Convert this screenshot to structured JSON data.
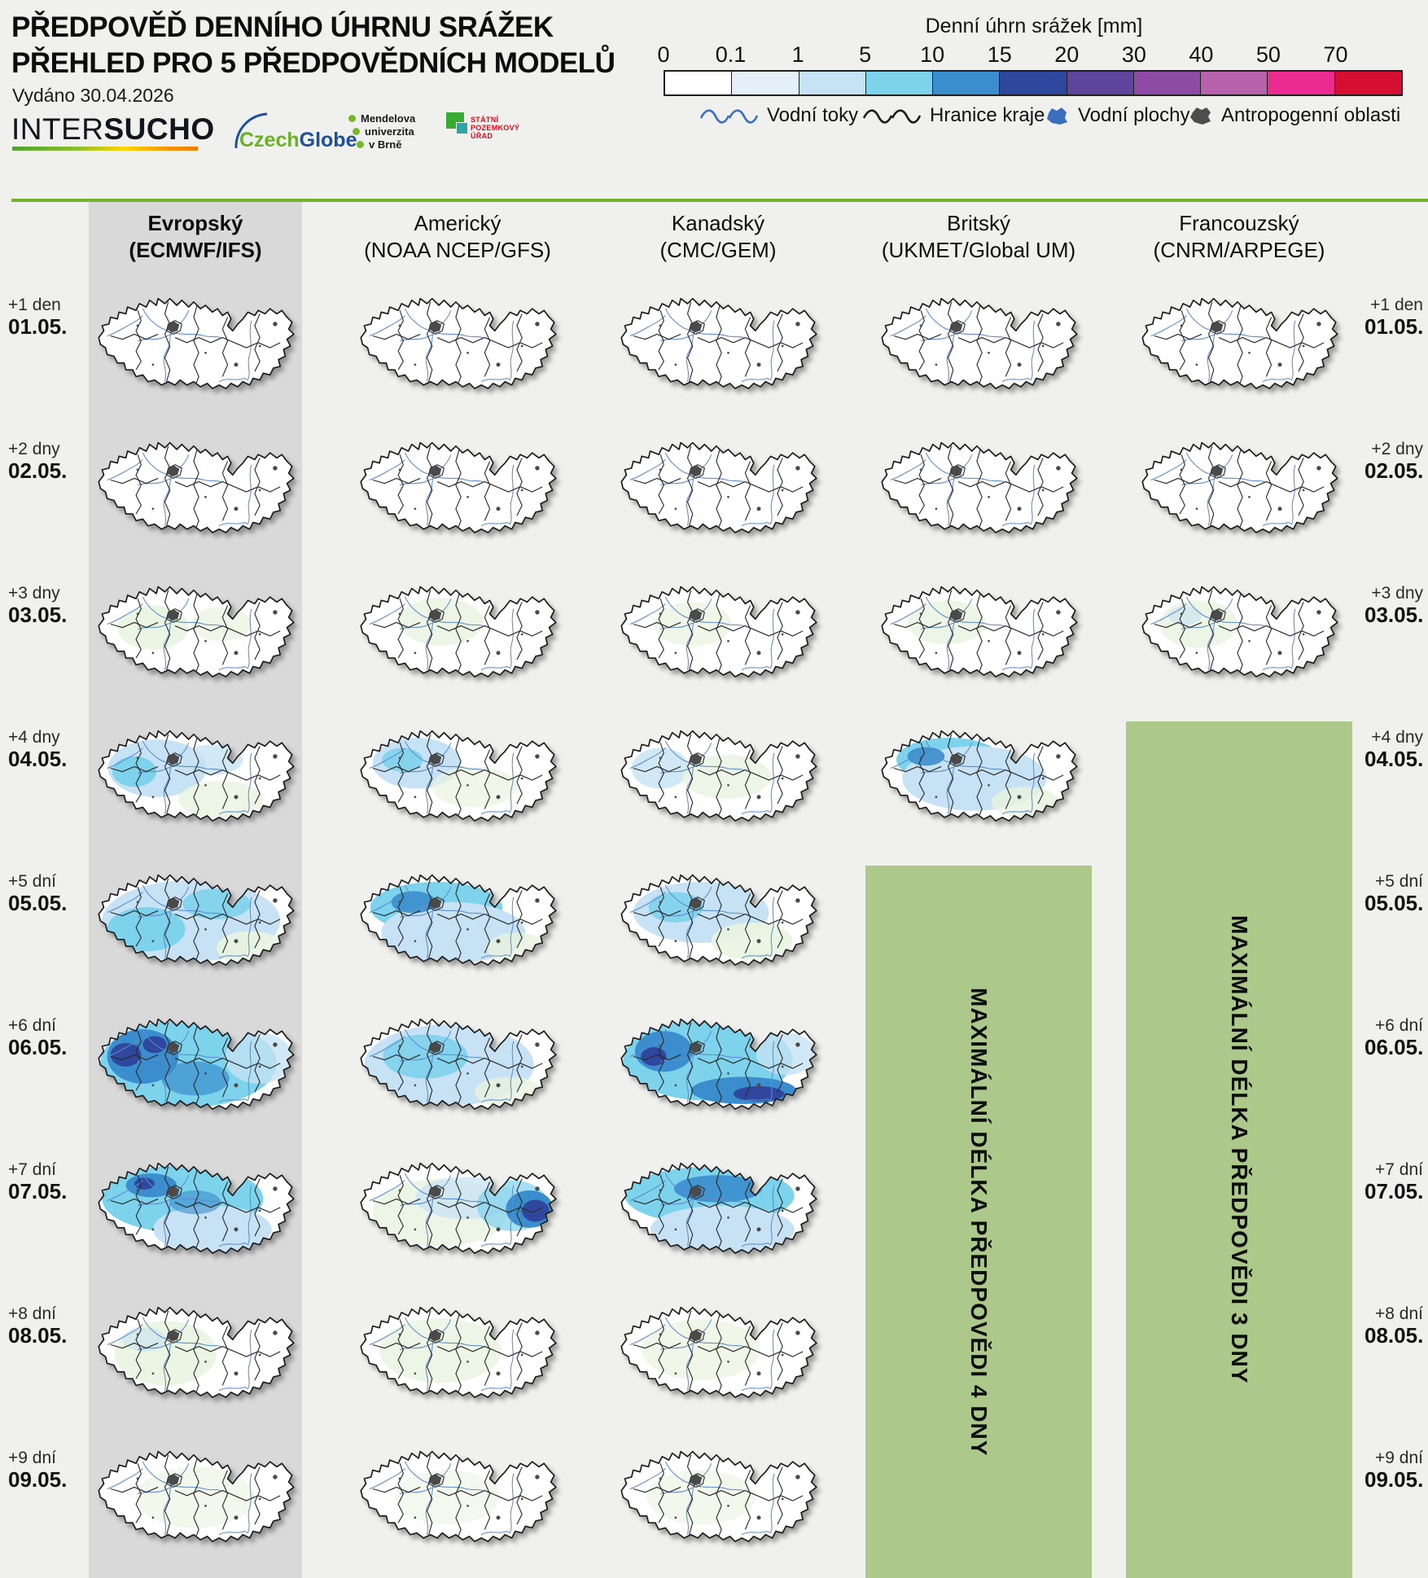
{
  "page": {
    "background": "#f0f0ee",
    "accent_green": "#72b32b",
    "box_green": "#adc88b",
    "band_gray": "#d9d9d9"
  },
  "header": {
    "title_line1": "PŘEDPOVĚĎ DENNÍHO ÚHRNU SRÁŽEK",
    "title_line2": "PŘEHLED PRO 5 PŘEDPOVĚDNÍCH MODELŮ",
    "issued": "Vydáno 30.04.2026"
  },
  "logos": {
    "intersucho_regular": "INTER",
    "intersucho_bold": "SUCHO",
    "czechglobe_green": "Czech",
    "czechglobe_blue": "Globe",
    "mendel_lines": [
      "Mendelova",
      "univerzita",
      "v Brně"
    ],
    "spu_lines": [
      "STÁTNÍ",
      "POZEMKOVÝ",
      "ÚŘAD"
    ]
  },
  "colorbar": {
    "title": "Denní úhrn srážek [mm]",
    "ticks": [
      "0",
      "0.1",
      "1",
      "5",
      "10",
      "15",
      "20",
      "30",
      "40",
      "50",
      "70"
    ],
    "colors": [
      "#ffffff",
      "#e4eff9",
      "#c6e2f4",
      "#7dd2ec",
      "#3a8ecd",
      "#2f479f",
      "#5f449e",
      "#8e4ba6",
      "#b763ab",
      "#eb2b90",
      "#d60f32"
    ]
  },
  "map_legend": {
    "items": [
      {
        "label": "Vodní toky"
      },
      {
        "label": "Hranice kraje"
      },
      {
        "label": "Vodní plochy"
      },
      {
        "label": "Antropogenní oblasti"
      }
    ]
  },
  "models": [
    {
      "name": "Evropský",
      "source": "(ECMWF/IFS)",
      "highlighted": true
    },
    {
      "name": "Americký",
      "source": "(NOAA NCEP/GFS)",
      "highlighted": false
    },
    {
      "name": "Kanadský",
      "source": "(CMC/GEM)",
      "highlighted": false
    },
    {
      "name": "Britský",
      "source": "(UKMET/Global UM)",
      "highlighted": false
    },
    {
      "name": "Francouzský",
      "source": "(CNRM/ARPEGE)",
      "highlighted": false
    }
  ],
  "rows": [
    {
      "offset": "+1 den",
      "date": "01.05."
    },
    {
      "offset": "+2 dny",
      "date": "02.05."
    },
    {
      "offset": "+3 dny",
      "date": "03.05."
    },
    {
      "offset": "+4 dny",
      "date": "04.05."
    },
    {
      "offset": "+5 dní",
      "date": "05.05."
    },
    {
      "offset": "+6 dní",
      "date": "06.05."
    },
    {
      "offset": "+7 dní",
      "date": "07.05."
    },
    {
      "offset": "+8 dní",
      "date": "08.05."
    },
    {
      "offset": "+9 dní",
      "date": "09.05."
    }
  ],
  "max_boxes": [
    {
      "label": "MAXIMÁLNÍ DÉLKA PŘEDPOVĚDI 4 DNY",
      "model": "Britský",
      "forecast_days": 4
    },
    {
      "label": "MAXIMÁLNÍ DÉLKA PŘEDPOVĚDI 3 DNY",
      "model": "Francouzský",
      "forecast_days": 3
    }
  ],
  "maps": {
    "cells": [
      {
        "model": 0,
        "row": 0,
        "wash": []
      },
      {
        "model": 0,
        "row": 1,
        "wash": []
      },
      {
        "model": 0,
        "row": 2,
        "wash": [
          [
            "#e9f4e0",
            70,
            62,
            42,
            26,
            0.9
          ],
          [
            "#e9f4e0",
            150,
            58,
            36,
            20,
            0.7
          ]
        ]
      },
      {
        "model": 0,
        "row": 3,
        "wash": [
          [
            "#c6e2f4",
            75,
            58,
            58,
            34,
            1
          ],
          [
            "#7dd2ec",
            48,
            62,
            26,
            18,
            1
          ],
          [
            "#c6e2f4",
            140,
            48,
            36,
            18,
            0.8
          ],
          [
            "#e9f4e0",
            150,
            95,
            50,
            22,
            0.8
          ]
        ]
      },
      {
        "model": 0,
        "row": 4,
        "wash": [
          [
            "#c6e2f4",
            115,
            68,
            105,
            48,
            1
          ],
          [
            "#7dd2ec",
            62,
            78,
            46,
            26,
            1
          ],
          [
            "#7dd2ec",
            145,
            48,
            40,
            18,
            0.9
          ],
          [
            "#e9f4e0",
            185,
            100,
            40,
            20,
            0.9
          ]
        ]
      },
      {
        "model": 0,
        "row": 5,
        "wash": [
          [
            "#7dd2ec",
            112,
            66,
            104,
            52,
            1
          ],
          [
            "#3a8ecd",
            58,
            58,
            42,
            32,
            1
          ],
          [
            "#2f479f",
            38,
            56,
            18,
            14,
            1
          ],
          [
            "#2f479f",
            72,
            44,
            14,
            10,
            1
          ],
          [
            "#3a8ecd",
            120,
            84,
            40,
            20,
            0.7
          ],
          [
            "#c6e2f4",
            195,
            60,
            40,
            30,
            0.8
          ]
        ]
      },
      {
        "model": 0,
        "row": 6,
        "wash": [
          [
            "#7dd2ec",
            105,
            56,
            95,
            40,
            1
          ],
          [
            "#3a8ecd",
            68,
            40,
            30,
            14,
            1
          ],
          [
            "#2f479f",
            60,
            38,
            12,
            7,
            1
          ],
          [
            "#c6e2f4",
            140,
            92,
            70,
            28,
            1
          ],
          [
            "#3a8ecd",
            120,
            60,
            30,
            14,
            0.6
          ]
        ]
      },
      {
        "model": 0,
        "row": 7,
        "wash": [
          [
            "#e9f4e0",
            85,
            68,
            60,
            38,
            0.9
          ],
          [
            "#c6e2f4",
            60,
            52,
            26,
            14,
            0.6
          ]
        ]
      },
      {
        "model": 0,
        "row": 8,
        "wash": [
          [
            "#e9f4e0",
            120,
            68,
            70,
            36,
            0.6
          ]
        ]
      },
      {
        "model": 1,
        "row": 0,
        "wash": []
      },
      {
        "model": 1,
        "row": 1,
        "wash": []
      },
      {
        "model": 1,
        "row": 2,
        "wash": [
          [
            "#e9f4e0",
            100,
            55,
            50,
            28,
            0.8
          ]
        ]
      },
      {
        "model": 1,
        "row": 3,
        "wash": [
          [
            "#c6e2f4",
            72,
            52,
            52,
            30,
            1
          ],
          [
            "#7dd2ec",
            55,
            48,
            24,
            14,
            0.9
          ],
          [
            "#e9f4e0",
            140,
            80,
            50,
            24,
            0.7
          ]
        ]
      },
      {
        "model": 1,
        "row": 4,
        "wash": [
          [
            "#7dd2ec",
            95,
            52,
            78,
            30,
            1
          ],
          [
            "#c6e2f4",
            115,
            82,
            85,
            36,
            1
          ],
          [
            "#3a8ecd",
            68,
            46,
            26,
            13,
            0.9
          ],
          [
            "#e9f4e0",
            190,
            100,
            35,
            18,
            0.8
          ]
        ]
      },
      {
        "model": 1,
        "row": 5,
        "wash": [
          [
            "#c6e2f4",
            110,
            68,
            100,
            48,
            1
          ],
          [
            "#7dd2ec",
            82,
            58,
            50,
            26,
            0.9
          ],
          [
            "#e9f4e0",
            180,
            100,
            40,
            18,
            0.8
          ]
        ]
      },
      {
        "model": 1,
        "row": 6,
        "wash": [
          [
            "#e9f4e0",
            100,
            72,
            80,
            40,
            0.8
          ],
          [
            "#c6e2f4",
            130,
            55,
            60,
            25,
            0.7
          ],
          [
            "#7dd2ec",
            185,
            64,
            42,
            30,
            0.7
          ],
          [
            "#3a8ecd",
            205,
            68,
            28,
            22,
            1
          ],
          [
            "#2f479f",
            212,
            70,
            16,
            13,
            1
          ]
        ]
      },
      {
        "model": 1,
        "row": 7,
        "wash": [
          [
            "#e9f4e0",
            100,
            65,
            72,
            38,
            0.8
          ]
        ]
      },
      {
        "model": 1,
        "row": 8,
        "wash": [
          [
            "#e9f4e0",
            108,
            68,
            62,
            32,
            0.5
          ]
        ]
      },
      {
        "model": 2,
        "row": 0,
        "wash": []
      },
      {
        "model": 2,
        "row": 1,
        "wash": []
      },
      {
        "model": 2,
        "row": 2,
        "wash": [
          [
            "#e9f4e0",
            90,
            58,
            46,
            26,
            0.7
          ]
        ]
      },
      {
        "model": 2,
        "row": 3,
        "wash": [
          [
            "#c6e2f4",
            52,
            58,
            34,
            24,
            0.8
          ],
          [
            "#e9f4e0",
            130,
            68,
            52,
            26,
            0.8
          ]
        ]
      },
      {
        "model": 2,
        "row": 4,
        "wash": [
          [
            "#c6e2f4",
            100,
            58,
            80,
            36,
            1
          ],
          [
            "#7dd2ec",
            70,
            52,
            32,
            18,
            0.9
          ],
          [
            "#e9f4e0",
            160,
            92,
            48,
            22,
            0.9
          ]
        ]
      },
      {
        "model": 2,
        "row": 5,
        "wash": [
          [
            "#7dd2ec",
            108,
            62,
            100,
            48,
            1
          ],
          [
            "#3a8ecd",
            56,
            52,
            34,
            24,
            1
          ],
          [
            "#2f479f",
            44,
            58,
            15,
            11,
            1
          ],
          [
            "#3a8ecd",
            150,
            98,
            62,
            16,
            1
          ],
          [
            "#2f479f",
            168,
            102,
            30,
            9,
            1
          ],
          [
            "#c6e2f4",
            200,
            55,
            35,
            25,
            0.8
          ]
        ]
      },
      {
        "model": 2,
        "row": 6,
        "wash": [
          [
            "#7dd2ec",
            110,
            52,
            100,
            34,
            1
          ],
          [
            "#3a8ecd",
            120,
            44,
            52,
            16,
            0.9
          ],
          [
            "#c6e2f4",
            125,
            92,
            85,
            28,
            1
          ]
        ]
      },
      {
        "model": 2,
        "row": 7,
        "wash": [
          [
            "#e9f4e0",
            100,
            64,
            70,
            36,
            0.7
          ]
        ]
      },
      {
        "model": 2,
        "row": 8,
        "wash": [
          [
            "#e9f4e0",
            100,
            68,
            64,
            32,
            0.6
          ]
        ]
      },
      {
        "model": 3,
        "row": 0,
        "wash": []
      },
      {
        "model": 3,
        "row": 1,
        "wash": []
      },
      {
        "model": 3,
        "row": 2,
        "wash": [
          [
            "#e9f4e0",
            82,
            56,
            46,
            26,
            0.8
          ]
        ]
      },
      {
        "model": 3,
        "row": 3,
        "wash": [
          [
            "#7dd2ec",
            85,
            48,
            62,
            26,
            1
          ],
          [
            "#c6e2f4",
            115,
            70,
            85,
            38,
            1
          ],
          [
            "#3a8ecd",
            58,
            44,
            22,
            11,
            0.9
          ],
          [
            "#e9f4e0",
            175,
            98,
            40,
            18,
            0.8
          ]
        ]
      },
      {
        "model": 4,
        "row": 0,
        "wash": []
      },
      {
        "model": 4,
        "row": 1,
        "wash": []
      },
      {
        "model": 4,
        "row": 2,
        "wash": [
          [
            "#e9f4e0",
            72,
            58,
            46,
            28,
            0.8
          ],
          [
            "#c6e2f4",
            56,
            48,
            20,
            11,
            0.6
          ]
        ]
      }
    ]
  }
}
